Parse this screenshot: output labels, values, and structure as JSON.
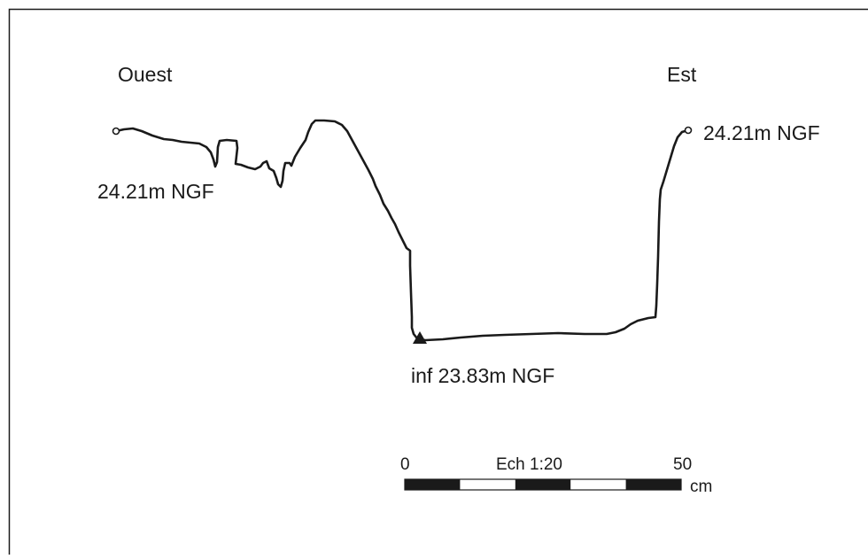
{
  "labels": {
    "west": "Ouest",
    "east": "Est",
    "west_level": "24.21m NGF",
    "east_level": "24.21m NGF",
    "bottom_level": "inf 23.83m NGF"
  },
  "scale_bar": {
    "start": "0",
    "title": "Ech 1:20",
    "end": "50",
    "unit": "cm",
    "segments": 5
  },
  "colors": {
    "ink": "#1a1a1a",
    "background": "#ffffff"
  },
  "icons": {
    "endpoint": "circle-marker-icon",
    "lowest_point": "triangle-marker-icon"
  }
}
